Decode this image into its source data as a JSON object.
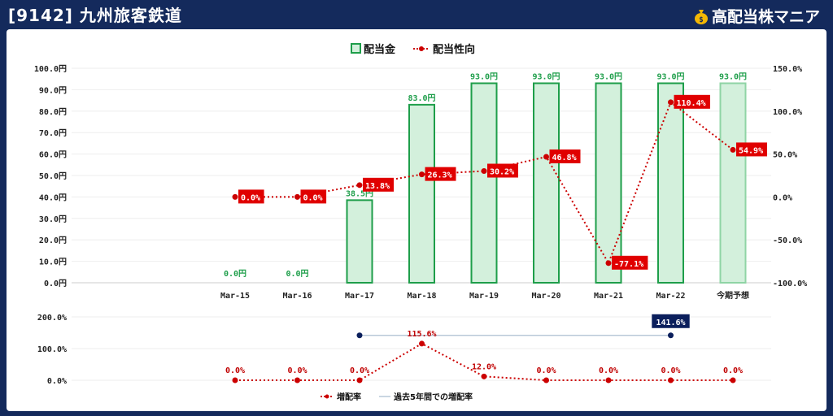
{
  "header": {
    "title": "[9142] 九州旅客鉄道",
    "brand": "高配当株マニア"
  },
  "colors": {
    "background": "#142a5c",
    "bar_fill": "#d3f0dc",
    "bar_stroke": "#1e9e4a",
    "forecast_bar_stroke": "#8fd4a5",
    "payout_line": "#cc0000",
    "label_box": "#e00000",
    "avg_line": "#b8c8d8",
    "avg_marker": "#0b1f5c"
  },
  "chart_data": [
    {
      "type": "bar",
      "categories": [
        "Mar-15",
        "Mar-16",
        "Mar-17",
        "Mar-18",
        "Mar-19",
        "Mar-20",
        "Mar-21",
        "Mar-22",
        "今期予想"
      ],
      "legend": [
        "配当金",
        "配当性向"
      ],
      "series": [
        {
          "name": "配当金",
          "kind": "bar",
          "axis": "left",
          "values": [
            0.0,
            0.0,
            38.5,
            83.0,
            93.0,
            93.0,
            93.0,
            93.0,
            93.0
          ],
          "labels": [
            "0.0円",
            "0.0円",
            "38.5円",
            "83.0円",
            "93.0円",
            "93.0円",
            "93.0円",
            "93.0円",
            "93.0円"
          ]
        },
        {
          "name": "配当性向",
          "kind": "line",
          "axis": "right",
          "values": [
            0.0,
            0.0,
            13.8,
            26.3,
            30.2,
            46.8,
            -77.1,
            110.4,
            54.9
          ],
          "labels": [
            "0.0%",
            "0.0%",
            "13.8%",
            "26.3%",
            "30.2%",
            "46.8%",
            "-77.1%",
            "110.4%",
            "54.9%"
          ]
        }
      ],
      "y_left": {
        "range": [
          0,
          100
        ],
        "ticks": [
          "0.0円",
          "10.0円",
          "20.0円",
          "30.0円",
          "40.0円",
          "50.0円",
          "60.0円",
          "70.0円",
          "80.0円",
          "90.0円",
          "100.0円"
        ]
      },
      "y_right": {
        "range": [
          -100,
          150
        ],
        "ticks": [
          "-100.0%",
          "-50.0%",
          "0.0%",
          "50.0%",
          "100.0%",
          "150.0%"
        ]
      },
      "grid": true,
      "legend_position": "top-center"
    },
    {
      "type": "line",
      "categories": [
        "Mar-15",
        "Mar-16",
        "Mar-17",
        "Mar-18",
        "Mar-19",
        "Mar-20",
        "Mar-21",
        "Mar-22",
        "今期予想"
      ],
      "legend": [
        "増配率",
        "過去5年間での増配率"
      ],
      "series": [
        {
          "name": "増配率",
          "values": [
            0.0,
            0.0,
            0.0,
            115.6,
            12.0,
            0.0,
            0.0,
            0.0,
            0.0
          ],
          "labels": [
            "0.0%",
            "0.0%",
            "0.0%",
            "115.6%",
            "12.0%",
            "0.0%",
            "0.0%",
            "0.0%",
            "0.0%"
          ]
        },
        {
          "name": "過去5年間での増配率",
          "from": "Mar-17",
          "to": "Mar-22",
          "value": 141.6,
          "label": "141.6%"
        }
      ],
      "y": {
        "range": [
          0,
          200
        ],
        "ticks": [
          "0.0%",
          "100.0%",
          "200.0%"
        ]
      },
      "grid": true,
      "legend_position": "bottom-center"
    }
  ]
}
